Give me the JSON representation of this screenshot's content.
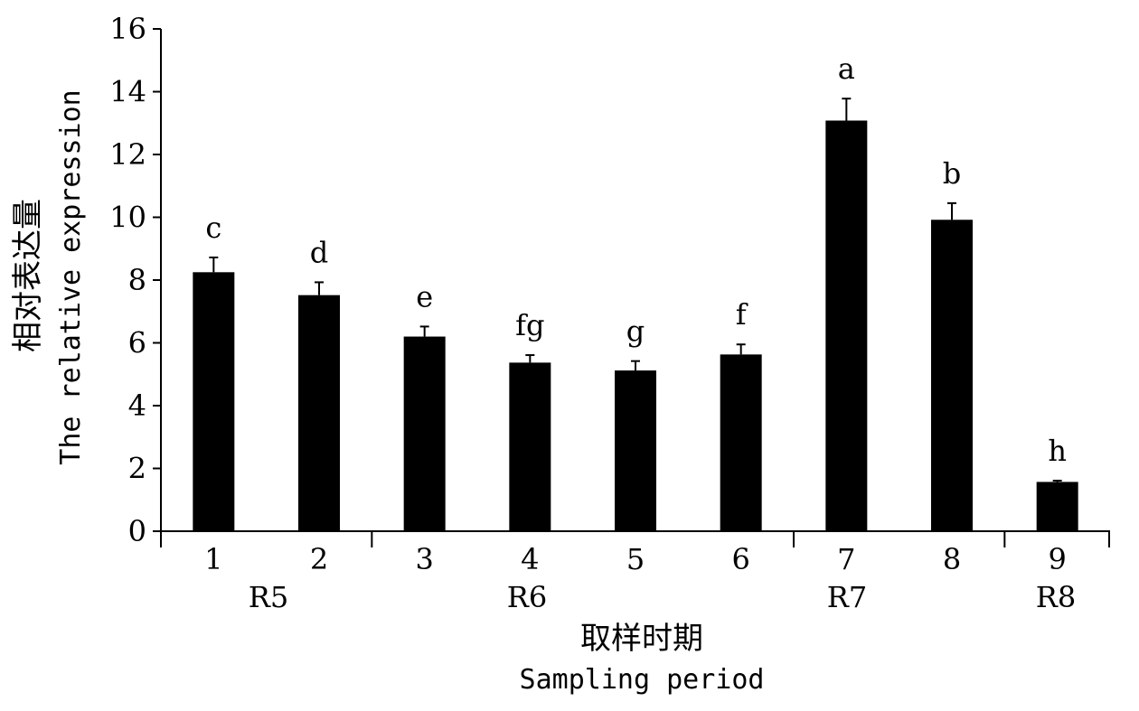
{
  "chart_data": {
    "type": "bar",
    "categories": [
      "1",
      "2",
      "3",
      "4",
      "5",
      "6",
      "7",
      "8",
      "9"
    ],
    "values": [
      8.25,
      7.52,
      6.2,
      5.37,
      5.12,
      5.63,
      13.08,
      9.92,
      1.57
    ],
    "errors": [
      0.47,
      0.41,
      0.32,
      0.24,
      0.3,
      0.32,
      0.7,
      0.53,
      0.04
    ],
    "significance_letters": [
      "c",
      "d",
      "e",
      "fg",
      "g",
      "f",
      "a",
      "b",
      "h"
    ],
    "groups": [
      {
        "label": "R5",
        "categories": [
          "1",
          "2"
        ]
      },
      {
        "label": "R6",
        "categories": [
          "3",
          "4",
          "5",
          "6"
        ]
      },
      {
        "label": "R7",
        "categories": [
          "7",
          "8"
        ]
      },
      {
        "label": "R8",
        "categories": [
          "9"
        ]
      }
    ],
    "ylim": [
      0,
      16
    ],
    "yticks": [
      "0",
      "2",
      "4",
      "6",
      "8",
      "10",
      "12",
      "14",
      "16"
    ],
    "ylabel_cn": "相对表达量",
    "ylabel_en": "The relative expression",
    "xlabel_cn": "取样时期",
    "xlabel_en": "Sampling period",
    "bar_color": "#000000",
    "grid": false,
    "legend": "none"
  }
}
